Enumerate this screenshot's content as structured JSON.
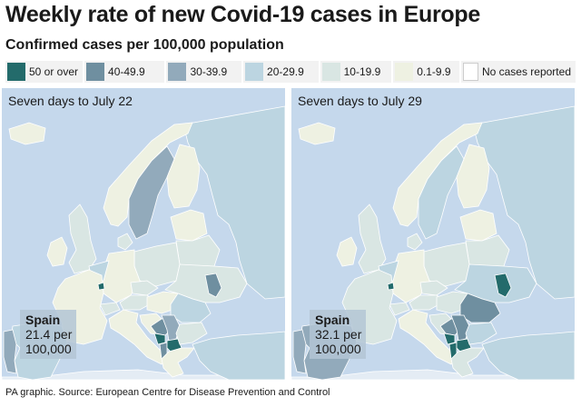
{
  "title": "Weekly rate of new Covid-19 cases in Europe",
  "subtitle": "Confirmed cases per 100,000 population",
  "colors": {
    "sea": "#c5d8ec",
    "no_data_land": "#e4ecf4",
    "c50": "#236b6b",
    "c40": "#6f8fa0",
    "c30": "#92aabb",
    "c20": "#bcd5e1",
    "c10": "#d9e6e3",
    "c01": "#eef1e2",
    "none": "#ffffff",
    "callout_bg": "#b3c6d5",
    "border": "#ffffff"
  },
  "legend": [
    {
      "label": "50 or over",
      "color": "#236b6b"
    },
    {
      "label": "40-49.9",
      "color": "#6f8fa0"
    },
    {
      "label": "30-39.9",
      "color": "#92aabb"
    },
    {
      "label": "20-29.9",
      "color": "#bcd5e1"
    },
    {
      "label": "10-19.9",
      "color": "#d9e6e3"
    },
    {
      "label": "0.1-9.9",
      "color": "#eef1e2"
    },
    {
      "label": "No cases reported",
      "color": "#ffffff"
    }
  ],
  "maps": [
    {
      "period": "Seven days to July 22",
      "callout": {
        "name": "Spain",
        "line1": "21.4 per",
        "line2": "100,000"
      },
      "classes": {
        "spain": "c20",
        "portugal": "c30",
        "france": "c01",
        "uk": "c10",
        "ireland": "c01",
        "iceland": "c01",
        "norway": "c01",
        "sweden": "c30",
        "finland": "c01",
        "denmark": "c10",
        "benelux": "c20",
        "luxembourg": "c50",
        "germany": "c01",
        "switzerland": "c10",
        "italy": "c01",
        "austria": "c10",
        "czechia": "c10",
        "poland": "c10",
        "baltics": "c01",
        "belarus": "c10",
        "ukraine": "c10",
        "moldova": "c40",
        "romania": "c20",
        "hungary": "c01",
        "balkans": "c40",
        "montenegro": "c50",
        "north_macedonia": "c50",
        "serbia": "c30",
        "bulgaria": "c10",
        "greece": "c01",
        "russia": "c20",
        "turkey": "c20",
        "albania": "c40",
        "croatia": "c01"
      }
    },
    {
      "period": "Seven days to July 29",
      "callout": {
        "name": "Spain",
        "line1": "32.1 per",
        "line2": "100,000"
      },
      "classes": {
        "spain": "c30",
        "portugal": "c30",
        "france": "c10",
        "uk": "c10",
        "ireland": "c01",
        "iceland": "c01",
        "norway": "c01",
        "sweden": "c20",
        "finland": "c01",
        "denmark": "c10",
        "benelux": "c20",
        "luxembourg": "c50",
        "germany": "c01",
        "switzerland": "c10",
        "italy": "c01",
        "austria": "c10",
        "czechia": "c10",
        "poland": "c10",
        "baltics": "c01",
        "belarus": "c10",
        "ukraine": "c20",
        "moldova": "c50",
        "romania": "c40",
        "hungary": "c10",
        "balkans": "c40",
        "montenegro": "c50",
        "north_macedonia": "c50",
        "serbia": "c40",
        "bulgaria": "c20",
        "greece": "c10",
        "russia": "c20",
        "turkey": "c20",
        "albania": "c50",
        "croatia": "c10"
      }
    }
  ],
  "source": "PA graphic. Source: European Centre for Disease Prevention and Control"
}
